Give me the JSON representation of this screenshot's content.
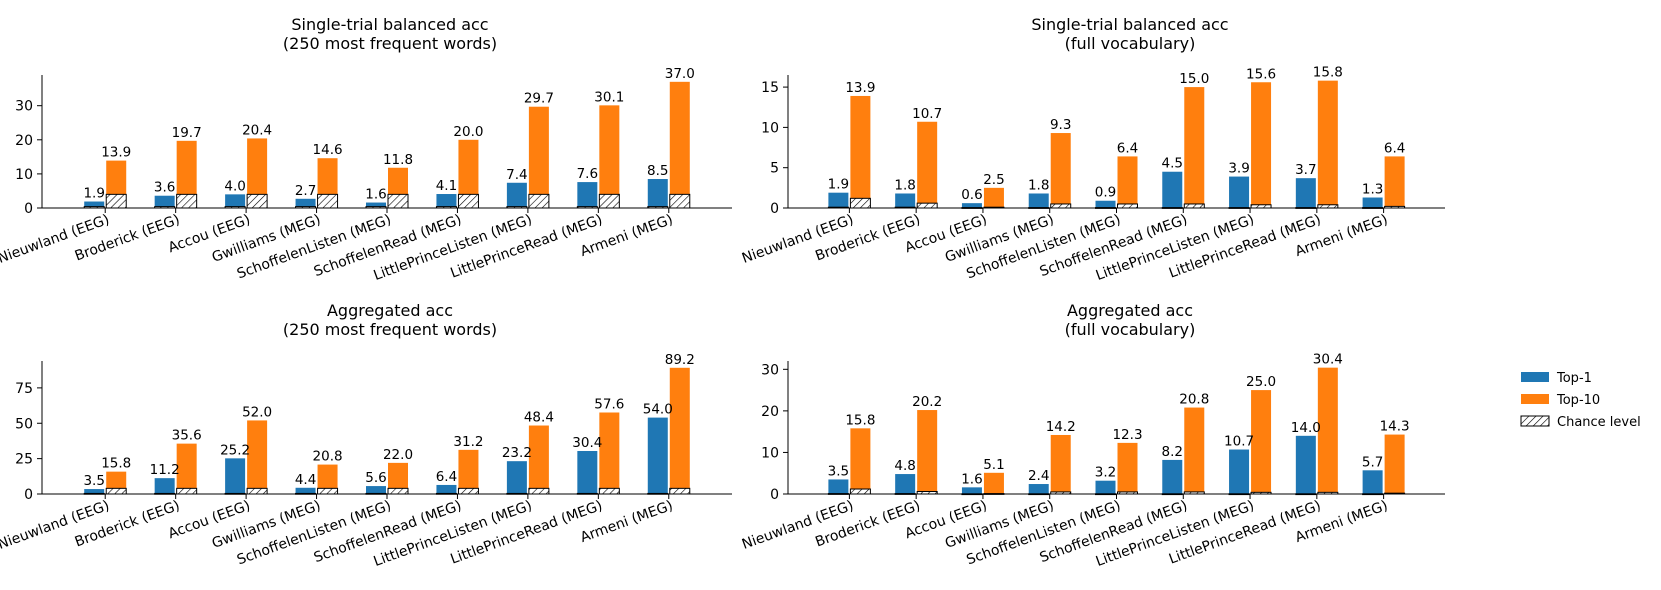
{
  "legend": {
    "top1_label": "Top-1",
    "top10_label": "Top-10",
    "chance_label": "Chance level",
    "placement": "right"
  },
  "colors": {
    "top1": "#1f77b4",
    "top10": "#ff7f0e",
    "chance_fill": "#ffffff",
    "chance_edge": "#000000"
  },
  "chart_data": [
    {
      "type": "bar",
      "title": "Single-trial balanced acc",
      "subtitle": "(250 most frequent words)",
      "categories": [
        "Nieuwland (EEG)",
        "Broderick (EEG)",
        "Accou (EEG)",
        "Gwilliams (MEG)",
        "SchoffelenListen (MEG)",
        "SchoffelenRead (MEG)",
        "LittlePrinceListen (MEG)",
        "LittlePrinceRead (MEG)",
        "Armeni (MEG)"
      ],
      "series": [
        {
          "name": "Top-1",
          "values": [
            1.9,
            3.6,
            4.0,
            2.7,
            1.6,
            4.1,
            7.4,
            7.6,
            8.5
          ],
          "chance": [
            0.4,
            0.4,
            0.4,
            0.4,
            0.4,
            0.4,
            0.4,
            0.4,
            0.4
          ]
        },
        {
          "name": "Top-10",
          "values": [
            13.9,
            19.7,
            20.4,
            14.6,
            11.8,
            20.0,
            29.7,
            30.1,
            37.0
          ],
          "chance": [
            4.0,
            4.0,
            4.0,
            4.0,
            4.0,
            4.0,
            4.0,
            4.0,
            4.0
          ]
        }
      ],
      "labels": [
        "1.9",
        "3.6",
        "4.0",
        "2.7",
        "1.6",
        "4.1",
        "7.4",
        "7.6",
        "8.5",
        "13.9",
        "19.7",
        "20.4",
        "14.6",
        "11.8",
        "20.0",
        "29.7",
        "30.1",
        "37.0"
      ],
      "yticks": [
        0,
        10,
        20,
        30
      ],
      "ylim": [
        0,
        39
      ]
    },
    {
      "type": "bar",
      "title": "Single-trial balanced acc",
      "subtitle": "(full vocabulary)",
      "categories": [
        "Nieuwland (EEG)",
        "Broderick (EEG)",
        "Accou (EEG)",
        "Gwilliams (MEG)",
        "SchoffelenListen (MEG)",
        "SchoffelenRead (MEG)",
        "LittlePrinceListen (MEG)",
        "LittlePrinceRead (MEG)",
        "Armeni (MEG)"
      ],
      "series": [
        {
          "name": "Top-1",
          "values": [
            1.9,
            1.8,
            0.6,
            1.8,
            0.9,
            4.5,
            3.9,
            3.7,
            1.3
          ],
          "chance": [
            0.1,
            0.1,
            0.05,
            0.05,
            0.05,
            0.05,
            0.05,
            0.05,
            0.05
          ]
        },
        {
          "name": "Top-10",
          "values": [
            13.9,
            10.7,
            2.5,
            9.3,
            6.4,
            15.0,
            15.6,
            15.8,
            6.4
          ],
          "chance": [
            1.2,
            0.6,
            0.1,
            0.5,
            0.5,
            0.5,
            0.4,
            0.4,
            0.2
          ]
        }
      ],
      "labels": [
        "1.9",
        "1.8",
        "0.6",
        "1.8",
        "0.9",
        "4.5",
        "3.9",
        "3.7",
        "1.3",
        "13.9",
        "10.7",
        "2.5",
        "9.3",
        "6.4",
        "15.0",
        "15.6",
        "15.8",
        "6.4"
      ],
      "yticks": [
        0,
        5,
        10,
        15
      ],
      "ylim": [
        0,
        16.5
      ]
    },
    {
      "type": "bar",
      "title": "Aggregated acc",
      "subtitle": "(250 most frequent words)",
      "categories": [
        "Nieuwland (EEG)",
        "Broderick (EEG)",
        "Accou (EEG)",
        "Gwilliams (MEG)",
        "SchoffelenListen (MEG)",
        "SchoffelenRead (MEG)",
        "LittlePrinceListen (MEG)",
        "LittlePrinceRead (MEG)",
        "Armeni (MEG)"
      ],
      "series": [
        {
          "name": "Top-1",
          "values": [
            3.5,
            11.2,
            25.2,
            4.4,
            5.6,
            6.4,
            23.2,
            30.4,
            54.0
          ],
          "chance": [
            0.4,
            0.4,
            0.4,
            0.4,
            0.4,
            0.4,
            0.4,
            0.4,
            0.4
          ]
        },
        {
          "name": "Top-10",
          "values": [
            15.8,
            35.6,
            52.0,
            20.8,
            22.0,
            31.2,
            48.4,
            57.6,
            89.2
          ],
          "chance": [
            4.0,
            4.0,
            4.0,
            4.0,
            4.0,
            4.0,
            4.0,
            4.0,
            4.0
          ]
        }
      ],
      "labels": [
        "3.5",
        "11.2",
        "25.2",
        "4.4",
        "5.6",
        "6.4",
        "23.2",
        "30.4",
        "54.0",
        "15.8",
        "35.6",
        "52.0",
        "20.8",
        "22.0",
        "31.2",
        "48.4",
        "57.6",
        "89.2"
      ],
      "yticks": [
        0,
        25,
        50,
        75
      ],
      "ylim": [
        0,
        94
      ]
    },
    {
      "type": "bar",
      "title": "Aggregated acc",
      "subtitle": "(full vocabulary)",
      "categories": [
        "Nieuwland (EEG)",
        "Broderick (EEG)",
        "Accou (EEG)",
        "Gwilliams (MEG)",
        "SchoffelenListen (MEG)",
        "SchoffelenRead (MEG)",
        "LittlePrinceListen (MEG)",
        "LittlePrinceRead (MEG)",
        "Armeni (MEG)"
      ],
      "series": [
        {
          "name": "Top-1",
          "values": [
            3.5,
            4.8,
            1.6,
            2.4,
            3.2,
            8.2,
            10.7,
            14.0,
            5.7
          ],
          "chance": [
            0.1,
            0.1,
            0.05,
            0.05,
            0.05,
            0.05,
            0.05,
            0.05,
            0.05
          ]
        },
        {
          "name": "Top-10",
          "values": [
            15.8,
            20.2,
            5.1,
            14.2,
            12.3,
            20.8,
            25.0,
            30.4,
            14.3
          ],
          "chance": [
            1.2,
            0.6,
            0.1,
            0.5,
            0.5,
            0.5,
            0.4,
            0.4,
            0.2
          ]
        }
      ],
      "labels": [
        "3.5",
        "4.8",
        "1.6",
        "2.4",
        "3.2",
        "8.2",
        "10.7",
        "14.0",
        "5.7",
        "15.8",
        "20.2",
        "5.1",
        "14.2",
        "12.3",
        "20.8",
        "25.0",
        "30.4",
        "14.3"
      ],
      "yticks": [
        0,
        10,
        20,
        30
      ],
      "ylim": [
        0,
        32
      ]
    }
  ]
}
